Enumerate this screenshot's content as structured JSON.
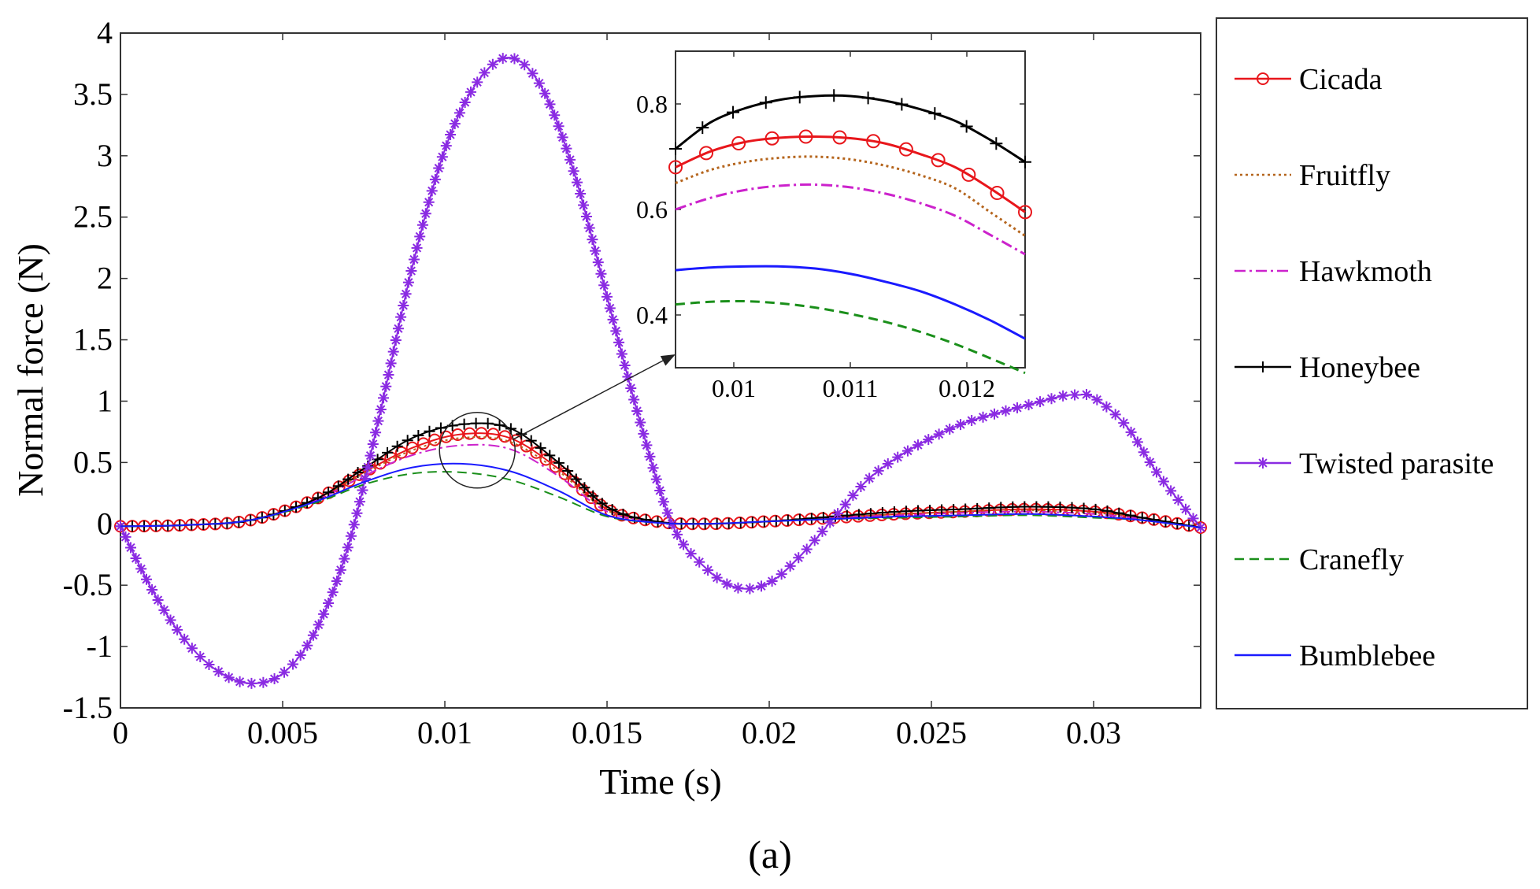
{
  "caption": "(a)",
  "chart_data": {
    "type": "line",
    "xlabel": "Time (s)",
    "ylabel": "Normal force (N)",
    "xlim": [
      0,
      0.0333
    ],
    "ylim": [
      -1.5,
      4
    ],
    "xticks": [
      0,
      0.005,
      0.01,
      0.015,
      0.02,
      0.025,
      0.03
    ],
    "xtick_labels": [
      "0",
      "0.005",
      "0.01",
      "0.015",
      "0.02",
      "0.025",
      "0.03"
    ],
    "yticks": [
      -1.5,
      -1,
      -0.5,
      0,
      0.5,
      1,
      1.5,
      2,
      2.5,
      3,
      3.5,
      4
    ],
    "ytick_labels": [
      "-1.5",
      "-1",
      "-0.5",
      "0",
      "0.5",
      "1",
      "1.5",
      "2",
      "2.5",
      "3",
      "3.5",
      "4"
    ],
    "grid": false,
    "legend_position": "right-outside",
    "series": [
      {
        "name": "Cicada",
        "color": "#e8161b",
        "style": "solid",
        "marker": "circle",
        "x": [
          0,
          0.002,
          0.004,
          0.006,
          0.0075,
          0.009,
          0.0105,
          0.012,
          0.0135,
          0.015,
          0.0165,
          0.018,
          0.02,
          0.022,
          0.024,
          0.026,
          0.028,
          0.03,
          0.0315,
          0.0333
        ],
        "y": [
          -0.02,
          -0.01,
          0.03,
          0.2,
          0.42,
          0.62,
          0.73,
          0.7,
          0.45,
          0.12,
          0.02,
          0.0,
          0.02,
          0.05,
          0.08,
          0.1,
          0.12,
          0.1,
          0.05,
          -0.03
        ]
      },
      {
        "name": "Fruitfly",
        "color": "#b5651d",
        "style": "dotted",
        "marker": "none",
        "x": [
          0,
          0.002,
          0.004,
          0.006,
          0.0075,
          0.009,
          0.0105,
          0.012,
          0.0135,
          0.015,
          0.0165,
          0.018,
          0.02,
          0.022,
          0.024,
          0.026,
          0.028,
          0.03,
          0.0315,
          0.0333
        ],
        "y": [
          -0.02,
          -0.01,
          0.03,
          0.2,
          0.41,
          0.6,
          0.7,
          0.67,
          0.43,
          0.11,
          0.02,
          0.0,
          0.02,
          0.05,
          0.08,
          0.1,
          0.11,
          0.09,
          0.05,
          -0.03
        ]
      },
      {
        "name": "Hawkmoth",
        "color": "#cc22cc",
        "style": "dashdot",
        "marker": "none",
        "x": [
          0,
          0.002,
          0.004,
          0.006,
          0.0075,
          0.009,
          0.0105,
          0.012,
          0.0135,
          0.015,
          0.0165,
          0.018,
          0.02,
          0.022,
          0.024,
          0.026,
          0.028,
          0.03,
          0.0315,
          0.0333
        ],
        "y": [
          -0.02,
          -0.01,
          0.03,
          0.19,
          0.39,
          0.56,
          0.64,
          0.61,
          0.39,
          0.1,
          0.02,
          0.0,
          0.02,
          0.05,
          0.07,
          0.09,
          0.1,
          0.08,
          0.04,
          -0.03
        ]
      },
      {
        "name": "Honeybee",
        "color": "#000000",
        "style": "solid",
        "marker": "plus",
        "x": [
          0,
          0.002,
          0.004,
          0.006,
          0.0075,
          0.009,
          0.0105,
          0.012,
          0.0135,
          0.015,
          0.0165,
          0.018,
          0.02,
          0.022,
          0.024,
          0.026,
          0.028,
          0.03,
          0.0315,
          0.0333
        ],
        "y": [
          -0.02,
          -0.01,
          0.03,
          0.2,
          0.45,
          0.7,
          0.81,
          0.78,
          0.5,
          0.14,
          0.02,
          0.0,
          0.02,
          0.06,
          0.1,
          0.12,
          0.14,
          0.12,
          0.05,
          -0.03
        ]
      },
      {
        "name": "Twisted parasite",
        "color": "#8a2be2",
        "style": "solid",
        "marker": "star",
        "x": [
          0,
          0.001,
          0.002,
          0.003,
          0.004,
          0.005,
          0.006,
          0.007,
          0.008,
          0.009,
          0.01,
          0.011,
          0.012,
          0.013,
          0.014,
          0.015,
          0.016,
          0.017,
          0.018,
          0.019,
          0.02,
          0.021,
          0.022,
          0.023,
          0.024,
          0.025,
          0.026,
          0.027,
          0.028,
          0.029,
          0.0295,
          0.03,
          0.031,
          0.032,
          0.0333
        ],
        "y": [
          -0.02,
          -0.55,
          -0.95,
          -1.2,
          -1.3,
          -1.22,
          -0.88,
          -0.2,
          0.9,
          2.1,
          3.05,
          3.6,
          3.8,
          3.55,
          2.85,
          1.85,
          0.85,
          0.0,
          -0.35,
          -0.52,
          -0.48,
          -0.25,
          0.05,
          0.35,
          0.55,
          0.7,
          0.82,
          0.9,
          0.97,
          1.04,
          1.05,
          1.03,
          0.8,
          0.4,
          -0.03
        ]
      },
      {
        "name": "Cranefly",
        "color": "#1a8f1a",
        "style": "dashed",
        "marker": "none",
        "x": [
          0,
          0.002,
          0.004,
          0.006,
          0.0075,
          0.009,
          0.0105,
          0.012,
          0.0135,
          0.015,
          0.0165,
          0.018,
          0.02,
          0.022,
          0.024,
          0.026,
          0.028,
          0.03,
          0.0315,
          0.0333
        ],
        "y": [
          -0.02,
          -0.01,
          0.03,
          0.17,
          0.32,
          0.41,
          0.42,
          0.36,
          0.22,
          0.06,
          0.01,
          0.0,
          0.02,
          0.04,
          0.05,
          0.06,
          0.07,
          0.05,
          0.03,
          -0.03
        ]
      },
      {
        "name": "Bumblebee",
        "color": "#1a1aff",
        "style": "solid",
        "marker": "none",
        "x": [
          0,
          0.002,
          0.004,
          0.006,
          0.0075,
          0.009,
          0.0105,
          0.012,
          0.0135,
          0.015,
          0.0165,
          0.018,
          0.02,
          0.022,
          0.024,
          0.026,
          0.028,
          0.03,
          0.0315,
          0.0333
        ],
        "y": [
          -0.02,
          -0.01,
          0.03,
          0.18,
          0.34,
          0.46,
          0.49,
          0.43,
          0.27,
          0.07,
          0.01,
          0.0,
          0.02,
          0.04,
          0.06,
          0.07,
          0.08,
          0.06,
          0.03,
          -0.03
        ]
      }
    ],
    "inset": {
      "xlim": [
        0.0095,
        0.0125
      ],
      "ylim": [
        0.3,
        0.9
      ],
      "xticks": [
        0.01,
        0.011,
        0.012
      ],
      "xtick_labels": [
        "0.01",
        "0.011",
        "0.012"
      ],
      "yticks": [
        0.4,
        0.6,
        0.8
      ],
      "ytick_labels": [
        "0.4",
        "0.6",
        "0.8"
      ],
      "zoom_center": [
        0.011,
        0.6
      ],
      "series": [
        {
          "name": "Cicada",
          "x": [
            0.0095,
            0.0098,
            0.0101,
            0.0104,
            0.0107,
            0.011,
            0.0113,
            0.0116,
            0.0119,
            0.0122,
            0.0125
          ],
          "y": [
            0.68,
            0.71,
            0.728,
            0.736,
            0.738,
            0.735,
            0.725,
            0.705,
            0.68,
            0.64,
            0.595
          ]
        },
        {
          "name": "Fruitfly",
          "x": [
            0.0095,
            0.0098,
            0.0101,
            0.0104,
            0.0107,
            0.011,
            0.0113,
            0.0116,
            0.0119,
            0.0122,
            0.0125
          ],
          "y": [
            0.65,
            0.675,
            0.69,
            0.698,
            0.7,
            0.695,
            0.683,
            0.665,
            0.64,
            0.595,
            0.55
          ]
        },
        {
          "name": "Hawkmoth",
          "x": [
            0.0095,
            0.0098,
            0.0101,
            0.0104,
            0.0107,
            0.011,
            0.0113,
            0.0116,
            0.0119,
            0.0122,
            0.0125
          ],
          "y": [
            0.6,
            0.622,
            0.637,
            0.645,
            0.647,
            0.642,
            0.63,
            0.612,
            0.588,
            0.552,
            0.515
          ]
        },
        {
          "name": "Honeybee",
          "x": [
            0.0095,
            0.0098,
            0.0101,
            0.0104,
            0.0107,
            0.011,
            0.0113,
            0.0116,
            0.0119,
            0.0122,
            0.0125
          ],
          "y": [
            0.715,
            0.765,
            0.792,
            0.808,
            0.815,
            0.815,
            0.806,
            0.79,
            0.768,
            0.732,
            0.69
          ]
        },
        {
          "name": "Cranefly",
          "x": [
            0.0095,
            0.0098,
            0.0101,
            0.0104,
            0.0107,
            0.011,
            0.0113,
            0.0116,
            0.0119,
            0.0122,
            0.0125
          ],
          "y": [
            0.42,
            0.425,
            0.426,
            0.422,
            0.414,
            0.402,
            0.387,
            0.368,
            0.345,
            0.318,
            0.29
          ]
        },
        {
          "name": "Bumblebee",
          "x": [
            0.0095,
            0.0098,
            0.0101,
            0.0104,
            0.0107,
            0.011,
            0.0113,
            0.0116,
            0.0119,
            0.0122,
            0.0125
          ],
          "y": [
            0.485,
            0.49,
            0.492,
            0.492,
            0.488,
            0.478,
            0.463,
            0.445,
            0.42,
            0.39,
            0.355
          ]
        }
      ]
    }
  }
}
